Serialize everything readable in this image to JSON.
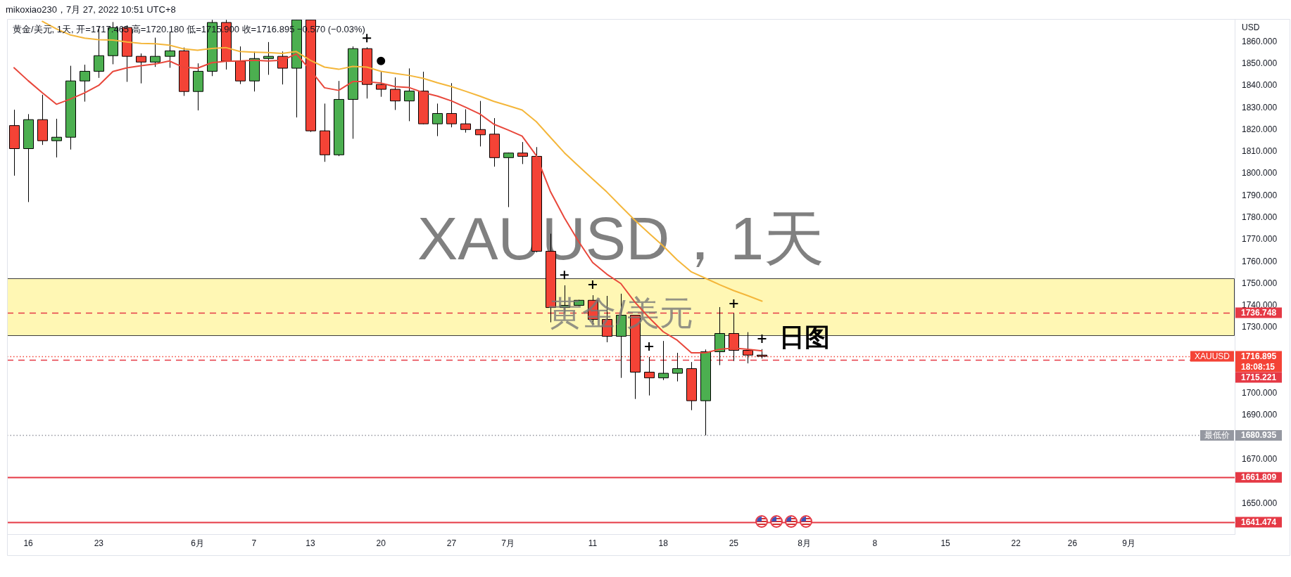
{
  "chart_data": {
    "type": "candlestick",
    "title": "XAUUSD，1天",
    "subtitle": "黄金/美元",
    "ylabel": "USD",
    "categories": [
      null,
      "16",
      null,
      null,
      null,
      null,
      "23",
      null,
      null,
      null,
      null,
      null,
      null,
      "6月",
      null,
      null,
      null,
      "7",
      null,
      null,
      null,
      "13",
      null,
      null,
      null,
      null,
      "20",
      null,
      null,
      null,
      null,
      "27",
      null,
      null,
      null,
      "7月",
      null,
      null,
      null,
      null,
      null,
      "11",
      null,
      null,
      null,
      null,
      "18",
      null,
      null,
      null,
      null,
      "25",
      null,
      null,
      null,
      null,
      "8月",
      null,
      null,
      null,
      null,
      "8",
      null,
      null,
      null,
      null,
      "15",
      null,
      null,
      null,
      null,
      "22",
      null,
      null,
      null,
      "26",
      null,
      null,
      null,
      "9月",
      null,
      null,
      null,
      null,
      null,
      null,
      null
    ],
    "ohlc": [
      [
        1821.9,
        1829.1,
        1799.1,
        1811.4
      ],
      [
        1811.4,
        1827.1,
        1787.1,
        1824.6
      ],
      [
        1824.6,
        1835.9,
        1813.1,
        1815.0
      ],
      [
        1815.0,
        1825.0,
        1807.4,
        1816.6
      ],
      [
        1816.6,
        1849.1,
        1811.0,
        1842.2
      ],
      [
        1842.2,
        1849.6,
        1832.8,
        1846.6
      ],
      [
        1846.6,
        1866.7,
        1843.6,
        1853.7
      ],
      [
        1853.7,
        1869.0,
        1849.8,
        1866.5
      ],
      [
        1866.5,
        1867.5,
        1841.8,
        1853.4
      ],
      [
        1853.4,
        1854.7,
        1841.1,
        1850.8
      ],
      [
        1850.8,
        1861.9,
        1848.6,
        1853.4
      ],
      [
        1853.4,
        1864.4,
        1848.2,
        1855.9
      ],
      [
        1855.9,
        1857.4,
        1835.4,
        1837.4
      ],
      [
        1837.4,
        1850.2,
        1828.8,
        1846.6
      ],
      [
        1846.6,
        1870.0,
        1844.4,
        1868.8
      ],
      [
        1868.8,
        1870.0,
        1847.4,
        1851.2
      ],
      [
        1851.2,
        1857.9,
        1840.8,
        1842.2
      ],
      [
        1842.2,
        1855.6,
        1837.4,
        1852.4
      ],
      [
        1852.4,
        1859.9,
        1845.0,
        1853.4
      ],
      [
        1853.4,
        1855.6,
        1840.6,
        1848.0
      ],
      [
        1848.0,
        1870.0,
        1825.6,
        1870.0
      ],
      [
        1870.0,
        1870.0,
        1819.0,
        1819.5
      ],
      [
        1819.5,
        1831.9,
        1805.4,
        1808.6
      ],
      [
        1808.6,
        1842.2,
        1808.0,
        1833.8
      ],
      [
        1833.8,
        1857.9,
        1815.9,
        1856.9
      ],
      [
        1856.9,
        1857.5,
        1834.2,
        1840.6
      ],
      [
        1840.6,
        1846.4,
        1835.0,
        1838.4
      ],
      [
        1838.4,
        1843.8,
        1829.0,
        1833.1
      ],
      [
        1833.1,
        1847.9,
        1823.9,
        1837.6
      ],
      [
        1837.6,
        1846.4,
        1822.5,
        1822.7
      ],
      [
        1822.7,
        1831.9,
        1817.1,
        1827.4
      ],
      [
        1827.4,
        1841.2,
        1821.1,
        1822.7
      ],
      [
        1822.7,
        1829.3,
        1818.7,
        1820.1
      ],
      [
        1820.1,
        1833.1,
        1812.4,
        1817.7
      ],
      [
        1818.0,
        1825.3,
        1803.2,
        1807.3
      ],
      [
        1807.3,
        1809.6,
        1784.8,
        1809.4
      ],
      [
        1809.4,
        1814.4,
        1804.4,
        1807.9
      ],
      [
        1807.9,
        1812.1,
        1764.2,
        1764.7
      ],
      [
        1764.7,
        1772.7,
        1732.4,
        1739.1
      ],
      [
        1739.1,
        1749.2,
        1736.5,
        1740.1
      ],
      [
        1740.1,
        1742.6,
        1739.8,
        1742.4
      ],
      [
        1742.4,
        1744.7,
        1731.3,
        1733.7
      ],
      [
        1733.7,
        1744.4,
        1723.3,
        1726.0
      ],
      [
        1726.0,
        1745.4,
        1707.1,
        1735.6
      ],
      [
        1735.6,
        1735.6,
        1697.5,
        1709.7
      ],
      [
        1709.7,
        1716.6,
        1699.1,
        1707.1
      ],
      [
        1707.1,
        1723.9,
        1706.1,
        1709.2
      ],
      [
        1709.2,
        1718.5,
        1705.5,
        1711.3
      ],
      [
        1711.3,
        1714.3,
        1692.4,
        1696.7
      ],
      [
        1696.7,
        1720.0,
        1680.935,
        1719.0
      ],
      [
        1719.0,
        1739.3,
        1712.9,
        1727.3
      ],
      [
        1727.3,
        1736.5,
        1714.8,
        1719.6
      ],
      [
        1719.6,
        1727.9,
        1713.7,
        1717.465
      ],
      [
        1717.465,
        1720.18,
        1715.9,
        1716.895
      ],
      null,
      null,
      null,
      null,
      null,
      null,
      null,
      null,
      null,
      null,
      null,
      null,
      null,
      null,
      null,
      null,
      null,
      null,
      null,
      null,
      null,
      null,
      null,
      null,
      null,
      null,
      null,
      null,
      null,
      null,
      null,
      null,
      null
    ],
    "colors": [
      "#f44336",
      "#4caf50",
      "#f44336",
      "#4caf50",
      "#4caf50",
      "#4caf50",
      "#4caf50",
      "#4caf50",
      "#f44336",
      "#f44336",
      "#4caf50",
      "#4caf50",
      "#f44336",
      "#4caf50",
      "#4caf50",
      "#f44336",
      "#f44336",
      "#4caf50",
      "#4caf50",
      "#f44336",
      "#4caf50",
      "#f44336",
      "#f44336",
      "#4caf50",
      "#4caf50",
      "#f44336",
      "#f44336",
      "#f44336",
      "#4caf50",
      "#f44336",
      "#4caf50",
      "#f44336",
      "#f44336",
      "#f44336",
      "#f44336",
      "#4caf50",
      "#f44336",
      "#f44336",
      "#f44336",
      "#4caf50",
      "#4caf50",
      "#f44336",
      "#f44336",
      "#4caf50",
      "#f44336",
      "#f44336",
      "#4caf50",
      "#4caf50",
      "#f44336",
      "#4caf50",
      "#4caf50",
      "#f44336",
      "#f44336",
      "#f44336",
      null,
      null,
      null,
      null,
      null,
      null,
      null,
      null,
      null,
      null,
      null,
      null,
      null,
      null,
      null,
      null,
      null,
      null,
      null,
      null,
      null,
      null,
      null,
      null,
      null,
      null,
      null,
      null,
      null,
      null,
      null,
      null,
      null
    ],
    "series": [
      {
        "type": "line",
        "color": "#e8473b",
        "values": [
          1848.2,
          1842.3,
          1836.8,
          1831.6,
          1834.0,
          1836.8,
          1840.2,
          1846.5,
          1848.2,
          1849.1,
          1849.9,
          1851.3,
          1848.4,
          1848.0,
          1850.5,
          1851.1,
          1851.3,
          1851.6,
          1851.3,
          1851.6,
          1854.5,
          1847.1,
          1839.1,
          1837.9,
          1841.9,
          1841.9,
          1841.2,
          1839.6,
          1839.2,
          1836.9,
          1835.3,
          1833.1,
          1830.2,
          1827.2,
          1822.5,
          1819.9,
          1817.1,
          1808.3,
          1792.0,
          1779.9,
          1769.2,
          1759.6,
          1754.3,
          1750.0,
          1741.5,
          1734.5,
          1728.1,
          1724.2,
          1718.5,
          1718.5,
          1720.1,
          1720.7,
          1720.1,
          1719.4,
          null,
          null,
          null,
          null,
          null,
          null,
          null,
          null,
          null,
          null,
          null,
          null,
          null,
          null,
          null,
          null,
          null,
          null,
          null,
          null,
          null,
          null,
          null,
          null,
          null,
          null,
          null,
          null,
          null,
          null,
          null,
          null,
          null
        ]
      },
      {
        "type": "line",
        "color": "#f4b63a",
        "values": [
          null,
          null,
          1869.3,
          1865.9,
          1863.1,
          1861.7,
          1861.0,
          1860.8,
          1859.9,
          1859.3,
          1859.1,
          1858.5,
          1856.8,
          1856.2,
          1857.0,
          1857.4,
          1855.6,
          1855.3,
          1855.1,
          1854.7,
          1855.6,
          1851.6,
          1848.5,
          1847.5,
          1848.8,
          1848.5,
          1846.6,
          1845.6,
          1844.7,
          1843.4,
          1841.4,
          1839.6,
          1837.5,
          1835.3,
          1832.9,
          1831.0,
          1829.0,
          1823.7,
          1816.6,
          1809.5,
          1803.5,
          1797.6,
          1791.7,
          1785.2,
          1778.8,
          1772.9,
          1767.1,
          1760.7,
          1755.3,
          1752.4,
          1749.5,
          1746.8,
          1744.5,
          1742.0,
          null,
          null,
          null,
          null,
          null,
          null,
          null,
          null,
          null,
          null,
          null,
          null,
          null,
          null,
          null,
          null,
          null,
          null,
          null,
          null,
          null,
          null,
          null,
          null,
          null,
          null,
          null,
          null,
          null,
          null,
          null,
          null,
          null
        ]
      },
      {
        "type": "scatter",
        "marker": "cross",
        "color": "#000000",
        "values": [
          null,
          null,
          null,
          null,
          null,
          null,
          null,
          null,
          null,
          null,
          null,
          null,
          null,
          null,
          null,
          null,
          null,
          null,
          null,
          null,
          null,
          null,
          null,
          null,
          null,
          1861.7,
          null,
          null,
          null,
          null,
          null,
          null,
          null,
          null,
          null,
          null,
          null,
          null,
          null,
          1753.9,
          null,
          1749.5,
          null,
          null,
          null,
          1721.4,
          null,
          null,
          null,
          null,
          null,
          1740.9,
          null,
          1724.9,
          null,
          null,
          null,
          null,
          null,
          null,
          null,
          null,
          null,
          null,
          null,
          null,
          null,
          null,
          null,
          null,
          null,
          null,
          null,
          null,
          null,
          null,
          null,
          null,
          null,
          null,
          null,
          null,
          null,
          null,
          null,
          null,
          null
        ]
      },
      {
        "type": "scatter",
        "marker": "circle",
        "color": "#000000",
        "values": [
          null,
          null,
          null,
          null,
          null,
          null,
          null,
          null,
          null,
          null,
          null,
          null,
          null,
          null,
          null,
          null,
          null,
          null,
          null,
          null,
          null,
          null,
          null,
          null,
          null,
          null,
          1851.3,
          null,
          null,
          null,
          null,
          null,
          null,
          null,
          null,
          null,
          null,
          null,
          null,
          null,
          null,
          null,
          null,
          null,
          null,
          null,
          null,
          null,
          null,
          null,
          null,
          null,
          null,
          null,
          null,
          null,
          null,
          null,
          null,
          null,
          null,
          null,
          null,
          null,
          null,
          null,
          null,
          null,
          null,
          null,
          null,
          null,
          null,
          null,
          null,
          null,
          null,
          null,
          null,
          null,
          null,
          null,
          null,
          null,
          null,
          null,
          null
        ]
      }
    ],
    "ylim": [
      1636,
      1870.4
    ],
    "yticks": [
      {
        "value": 1650,
        "label": "1650.000"
      },
      {
        "value": 1670,
        "label": "1670.000"
      },
      {
        "value": 1690,
        "label": "1690.000"
      },
      {
        "value": 1700,
        "label": "1700.000"
      },
      {
        "value": 1730,
        "label": "1730.000"
      },
      {
        "value": 1740,
        "label": "1740.000"
      },
      {
        "value": 1750,
        "label": "1750.000"
      },
      {
        "value": 1760,
        "label": "1760.000"
      },
      {
        "value": 1770,
        "label": "1770.000"
      },
      {
        "value": 1780,
        "label": "1780.000"
      },
      {
        "value": 1790,
        "label": "1790.000"
      },
      {
        "value": 1800,
        "label": "1800.000"
      },
      {
        "value": 1810,
        "label": "1810.000"
      },
      {
        "value": 1820,
        "label": "1820.000"
      },
      {
        "value": 1830,
        "label": "1830.000"
      },
      {
        "value": 1840,
        "label": "1840.000"
      },
      {
        "value": 1850,
        "label": "1850.000"
      },
      {
        "value": 1860,
        "label": "1860.000"
      }
    ],
    "ref_lines": [
      {
        "axis": "y",
        "value": 1736.748,
        "label": "1736.748",
        "color": "#e53945",
        "line_style": "dashed"
      },
      {
        "axis": "y",
        "value": 1716.895,
        "label": "1716.895",
        "color": "#f44336",
        "line_style": "dotted"
      },
      {
        "axis": "y",
        "value": 1715.221,
        "label": "1715.221",
        "color": "#e53945",
        "line_style": "dashed"
      },
      {
        "axis": "y",
        "value": 1680.935,
        "label": "1680.935",
        "color": "#9598a1",
        "line_style": "dotted"
      },
      {
        "axis": "y",
        "value": 1661.809,
        "label": "1661.809",
        "color": "#e53945",
        "line_style": "solid"
      },
      {
        "axis": "y",
        "value": 1641.474,
        "label": "1641.474",
        "color": "#e53945",
        "line_style": "solid"
      }
    ],
    "bands": [
      {
        "axis": "y",
        "from": 1726.3,
        "to": 1752.3,
        "color": "#fff176"
      }
    ],
    "annotations": [
      "mikoxiao230，7月 27, 2022 10:51 UTC+8",
      "黄金/美元, 1天, 开=1717.465 高=1720.180 低=1715.900 收=1716.895 −0.570 (−0.03%)",
      {
        "text": "日图",
        "x": "8月",
        "y": 1725
      },
      {
        "text": "XAUUSD",
        "y": 1716.895
      },
      {
        "text": "最低价",
        "y": 1680.935
      },
      "18:08:15"
    ]
  }
}
